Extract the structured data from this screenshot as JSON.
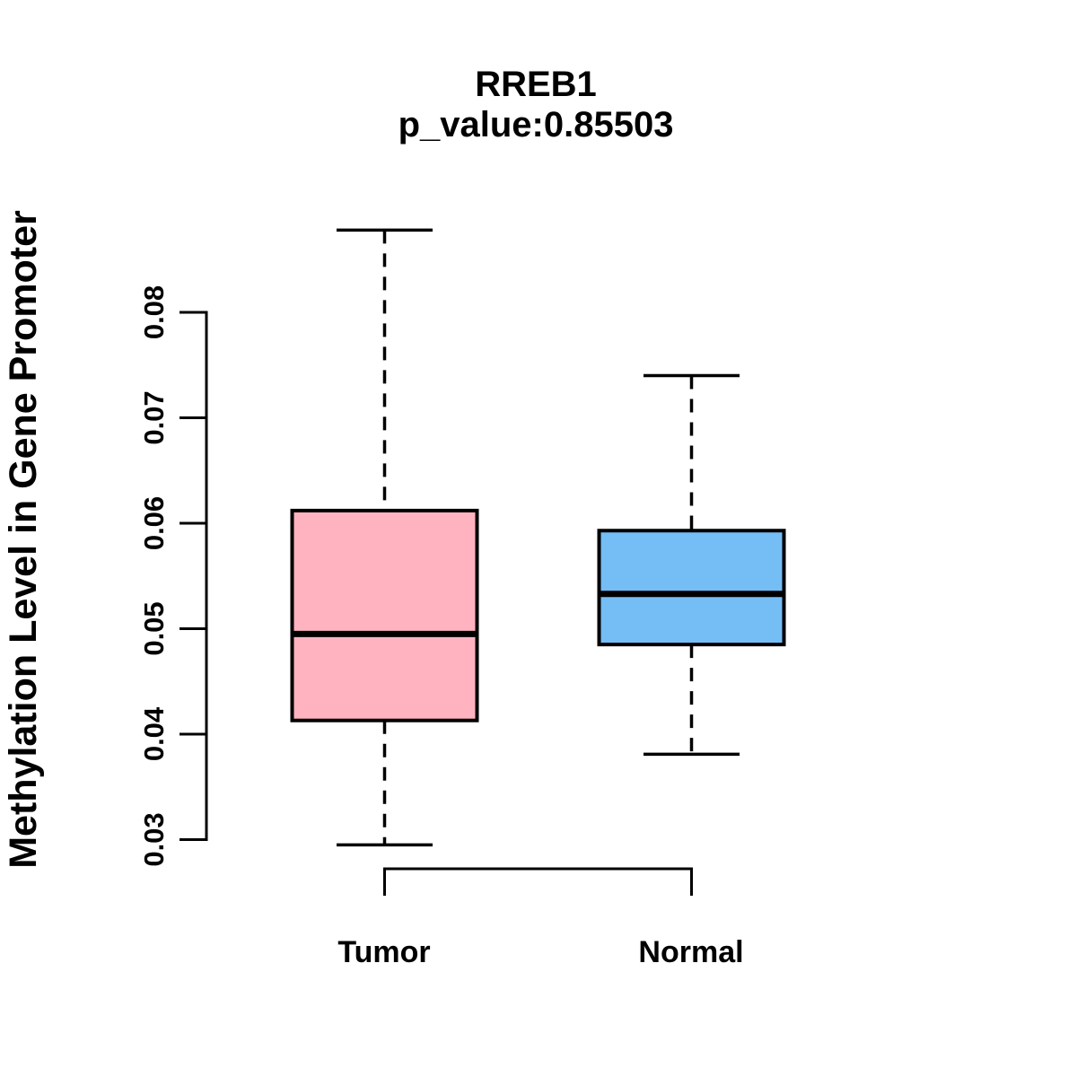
{
  "page": {
    "background_color": "#ffffff",
    "text_color": "#000000"
  },
  "chart_data": {
    "type": "boxplot",
    "title": "RREB1",
    "subtitle": "p_value:0.85503",
    "p_value": 0.85503,
    "ylabel": "Methylation Level in Gene Promoter",
    "xlabel": "",
    "categories": [
      "Tumor",
      "Normal"
    ],
    "ytick_labels": [
      "0.03",
      "0.04",
      "0.05",
      "0.06",
      "0.07",
      "0.08"
    ],
    "ytick_values": [
      0.03,
      0.04,
      0.05,
      0.06,
      0.07,
      0.08
    ],
    "ylim": [
      0.0295,
      0.088
    ],
    "grid": false,
    "legend": "none",
    "orientation": "vertical",
    "series": [
      {
        "name": "Tumor",
        "color": "#FFB3C1",
        "whisker_low": 0.0295,
        "q1": 0.0413,
        "median": 0.0495,
        "q3": 0.0612,
        "whisker_high": 0.0878
      },
      {
        "name": "Normal",
        "color": "#75BDF5",
        "whisker_low": 0.0381,
        "q1": 0.0485,
        "median": 0.0533,
        "q3": 0.0593,
        "whisker_high": 0.074
      }
    ],
    "style": {
      "box_border_color": "#000000",
      "median_color": "#000000",
      "whisker_style": "dashed"
    }
  }
}
